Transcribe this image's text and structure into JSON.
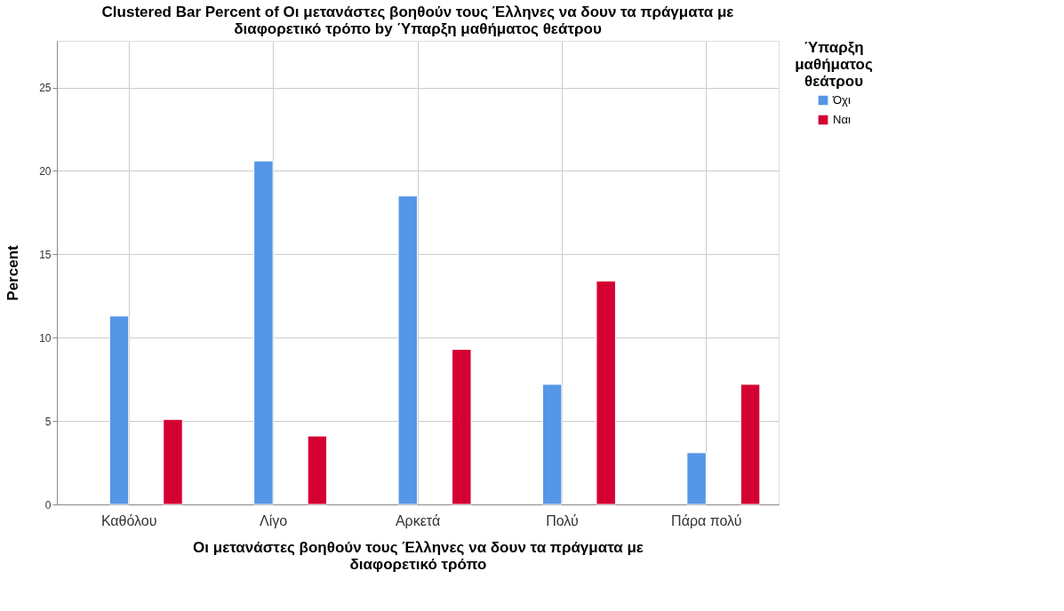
{
  "chart_data": {
    "type": "bar",
    "title": "Clustered Bar Percent of Οι μετανάστες βοηθούν τους Έλληνες να δουν τα πράγματα με διαφορετικό τρόπο by Ύπαρξη μαθήματος θεάτρου",
    "xlabel": "Οι μετανάστες βοηθούν τους Έλληνες να δουν τα πράγματα με διαφορετικό τρόπο",
    "ylabel": "Percent",
    "legend_title": "Ύπαρξη μαθήματος θεάτρου",
    "categories": [
      "Καθόλου",
      "Λίγο",
      "Αρκετά",
      "Πολύ",
      "Πάρα πολύ"
    ],
    "series": [
      {
        "name": "Όχι",
        "color": "#5596e6",
        "values": [
          11.3,
          20.6,
          18.5,
          7.2,
          3.1
        ]
      },
      {
        "name": "Ναι",
        "color": "#d50032",
        "values": [
          5.1,
          4.1,
          9.3,
          13.4,
          7.2
        ]
      }
    ],
    "ylim": [
      0,
      27.8
    ],
    "yticks": [
      0,
      5,
      10,
      15,
      20,
      25
    ],
    "grid": true,
    "legend": "top right"
  }
}
